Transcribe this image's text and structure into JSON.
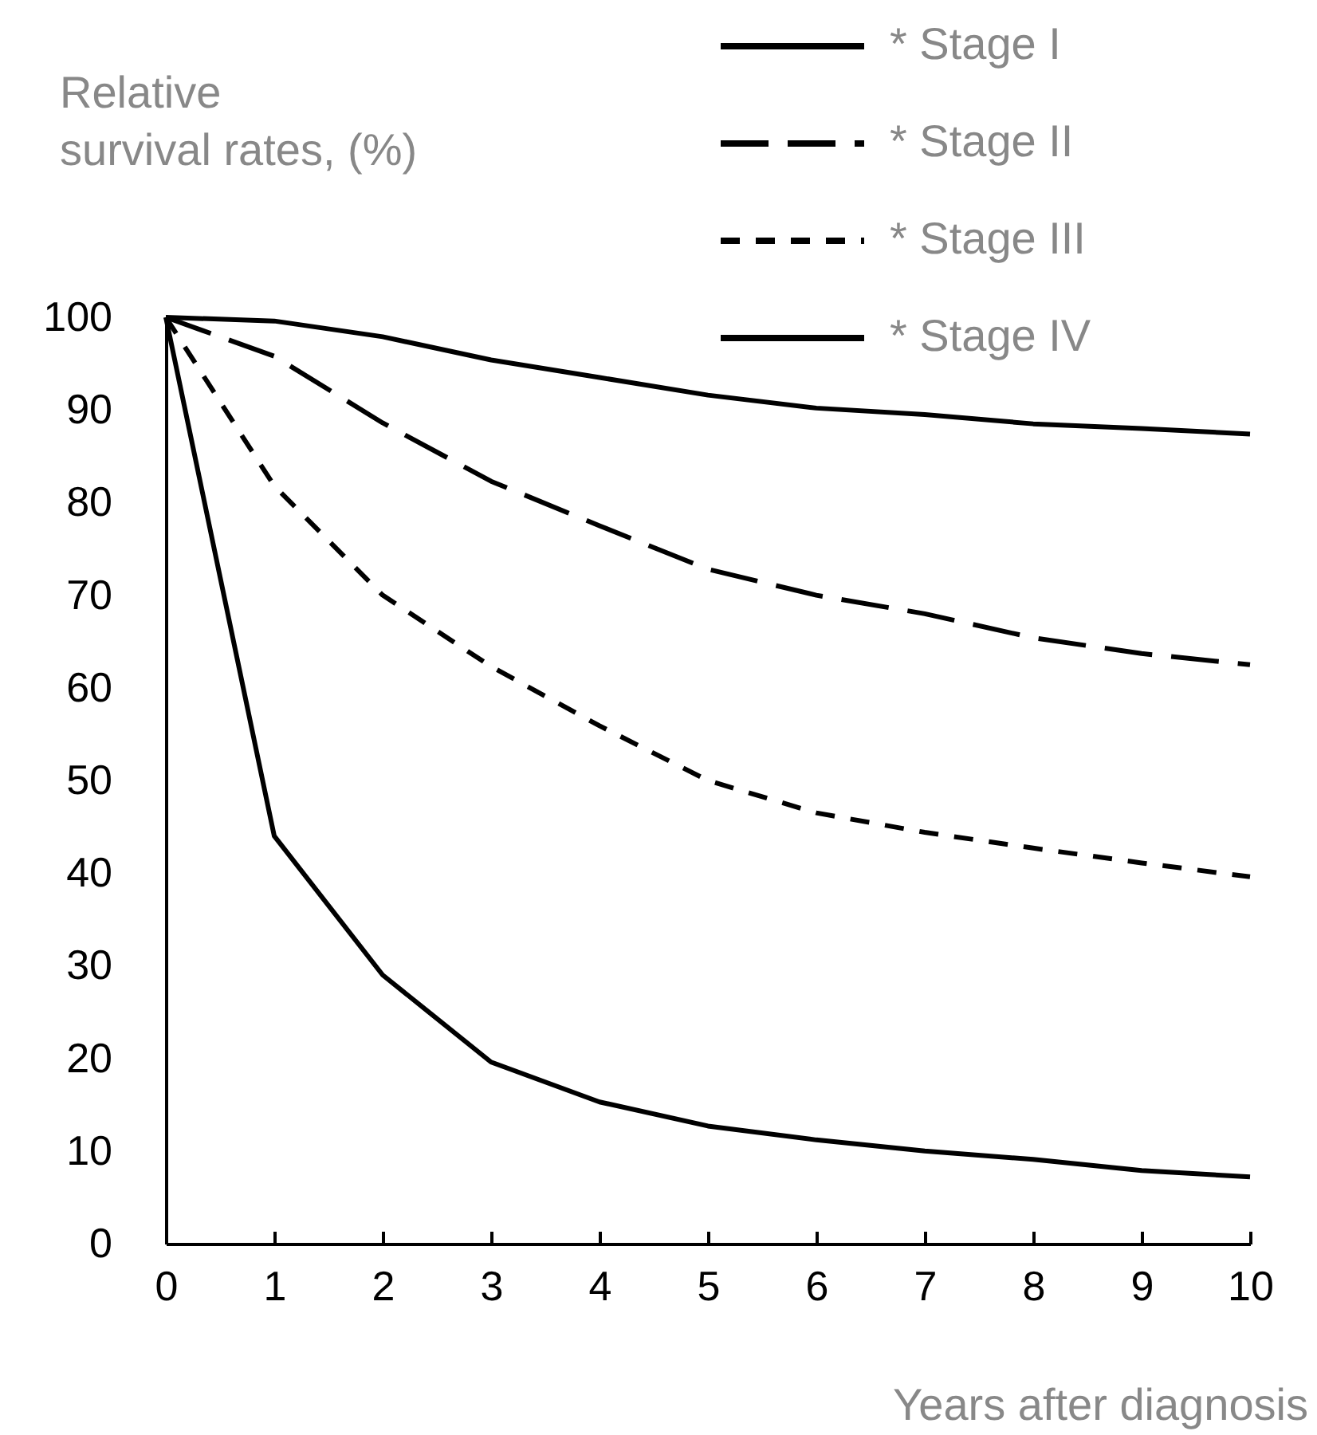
{
  "chart_data": {
    "type": "line",
    "ylabel": "Relative survival rates, (%)",
    "xlabel": "Years after diagnosis",
    "x": [
      0,
      1,
      2,
      3,
      4,
      5,
      6,
      7,
      8,
      9,
      10
    ],
    "series": [
      {
        "name": "* Stage I",
        "color": "#000000",
        "line_style": "solid",
        "values": [
          100,
          99.6,
          97.9,
          95.4,
          93.5,
          91.6,
          90.2,
          89.5,
          88.5,
          88,
          87.4
        ]
      },
      {
        "name": "* Stage II",
        "color": "#000000",
        "line_style": "dashed",
        "values": [
          100,
          95.8,
          88.6,
          82.3,
          77.5,
          72.8,
          70,
          68,
          65.4,
          63.7,
          62.5
        ]
      },
      {
        "name": "* Stage III",
        "color": "#000000",
        "line_style": "dotted",
        "values": [
          100,
          81.8,
          70,
          62.3,
          55.9,
          50,
          46.5,
          44.4,
          42.7,
          41.1,
          39.6
        ]
      },
      {
        "name": "* Stage IV",
        "color": "#000000",
        "line_style": "solid",
        "values": [
          100,
          44,
          29,
          19.6,
          15.3,
          12.7,
          11.2,
          10,
          9.1,
          7.9,
          7.2
        ]
      }
    ],
    "xlim": [
      0,
      10
    ],
    "xticks": [
      0,
      1,
      2,
      3,
      4,
      5,
      6,
      7,
      8,
      9,
      10
    ],
    "ylim": [
      0,
      100
    ],
    "yticks": [
      0,
      10,
      20,
      30,
      40,
      50,
      60,
      70,
      80,
      90,
      100
    ],
    "grid": false,
    "legend": "top right"
  }
}
